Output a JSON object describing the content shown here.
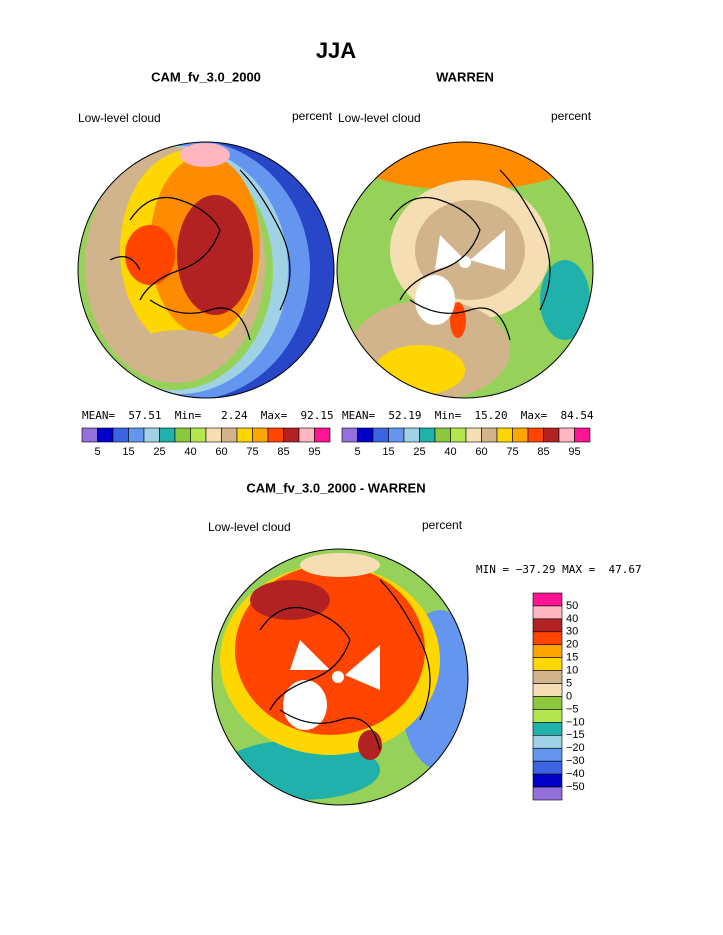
{
  "title": "JJA",
  "panels": [
    {
      "title": "CAM_fv_3.0_2000",
      "left_label": "Low-level cloud",
      "right_label": "percent",
      "stats": "MEAN=  57.51  Min=   2.24  Max=  92.15"
    },
    {
      "title": "WARREN",
      "left_label": "Low-level cloud",
      "right_label": "percent",
      "stats": "MEAN=  52.19  Min=  15.20  Max=  84.54"
    }
  ],
  "colorbar": {
    "colors": [
      "#9370db",
      "#0000c8",
      "#3c64e0",
      "#6496f0",
      "#a0d2e6",
      "#20b2aa",
      "#8cc83c",
      "#b4e650",
      "#f5deb3",
      "#d2b48c",
      "#ffd700",
      "#ffa500",
      "#ff4500",
      "#b22222",
      "#ffb6c1",
      "#ff1493"
    ],
    "labels": [
      "5",
      "15",
      "25",
      "40",
      "60",
      "75",
      "85",
      "95"
    ]
  },
  "difference": {
    "title": "CAM_fv_3.0_2000 - WARREN",
    "left_label": "Low-level cloud",
    "right_label": "percent",
    "stats": "MIN = −37.29 MAX =  47.67",
    "colorbar": {
      "colors": [
        "#ff1493",
        "#ffb6c1",
        "#b22222",
        "#ff4500",
        "#ffa500",
        "#ffd700",
        "#d2b48c",
        "#f5deb3",
        "#8cc83c",
        "#b4e650",
        "#20b2aa",
        "#a0d2e6",
        "#6496f0",
        "#3c64e0",
        "#0000c8",
        "#9370db"
      ],
      "labels": [
        "50",
        "40",
        "30",
        "20",
        "15",
        "10",
        "5",
        "0",
        "−5",
        "−10",
        "−15",
        "−20",
        "−30",
        "−40",
        "−50"
      ]
    }
  }
}
